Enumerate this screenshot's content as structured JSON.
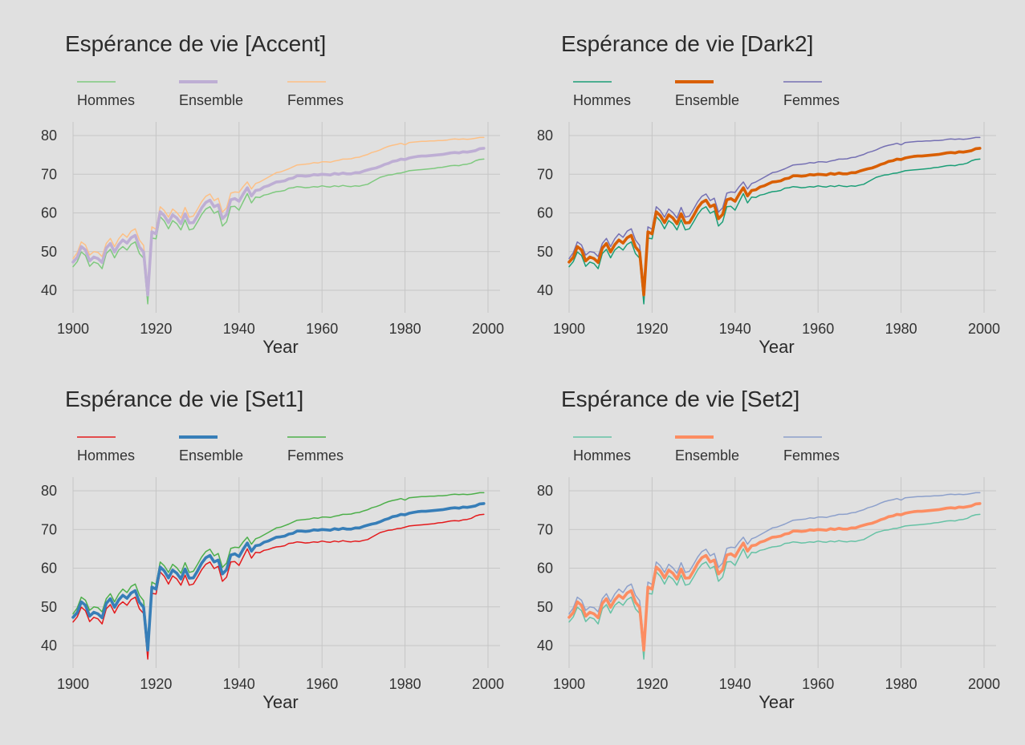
{
  "chart_data": [
    {
      "type": "line",
      "title": "Espérance de vie [Accent]",
      "xlabel": "Year",
      "ylabel": "",
      "xlim": [
        1900,
        2000
      ],
      "ylim": [
        35,
        83
      ],
      "x_ticks": [
        "1900",
        "1920",
        "1940",
        "1960",
        "1980",
        "2000"
      ],
      "y_ticks": [
        "40",
        "50",
        "60",
        "70",
        "80"
      ],
      "legend_position": "top",
      "grid": true,
      "series": [
        {
          "name": "Hommes",
          "color": "#7fc97f",
          "bold": false
        },
        {
          "name": "Ensemble",
          "color": "#beaed4",
          "bold": true
        },
        {
          "name": "Femmes",
          "color": "#fdc086",
          "bold": false
        }
      ]
    },
    {
      "type": "line",
      "title": "Espérance de vie [Dark2]",
      "xlabel": "Year",
      "ylabel": "",
      "xlim": [
        1900,
        2000
      ],
      "ylim": [
        35,
        83
      ],
      "x_ticks": [
        "1900",
        "1920",
        "1940",
        "1960",
        "1980",
        "2000"
      ],
      "y_ticks": [
        "40",
        "50",
        "60",
        "70",
        "80"
      ],
      "legend_position": "top",
      "grid": true,
      "series": [
        {
          "name": "Hommes",
          "color": "#1b9e77",
          "bold": false
        },
        {
          "name": "Ensemble",
          "color": "#d95f02",
          "bold": true
        },
        {
          "name": "Femmes",
          "color": "#7570b3",
          "bold": false
        }
      ]
    },
    {
      "type": "line",
      "title": "Espérance de vie [Set1]",
      "xlabel": "Year",
      "ylabel": "",
      "xlim": [
        1900,
        2000
      ],
      "ylim": [
        35,
        83
      ],
      "x_ticks": [
        "1900",
        "1920",
        "1940",
        "1960",
        "1980",
        "2000"
      ],
      "y_ticks": [
        "40",
        "50",
        "60",
        "70",
        "80"
      ],
      "legend_position": "top",
      "grid": true,
      "series": [
        {
          "name": "Hommes",
          "color": "#e41a1c",
          "bold": false
        },
        {
          "name": "Ensemble",
          "color": "#377eb8",
          "bold": true
        },
        {
          "name": "Femmes",
          "color": "#4daf4a",
          "bold": false
        }
      ]
    },
    {
      "type": "line",
      "title": "Espérance de vie [Set2]",
      "xlabel": "Year",
      "ylabel": "",
      "xlim": [
        1900,
        2000
      ],
      "ylim": [
        35,
        83
      ],
      "x_ticks": [
        "1900",
        "1920",
        "1940",
        "1960",
        "1980",
        "2000"
      ],
      "y_ticks": [
        "40",
        "50",
        "60",
        "70",
        "80"
      ],
      "legend_position": "top",
      "grid": true,
      "series": [
        {
          "name": "Hommes",
          "color": "#66c2a5",
          "bold": false
        },
        {
          "name": "Ensemble",
          "color": "#fc8d62",
          "bold": true
        },
        {
          "name": "Femmes",
          "color": "#8da0cb",
          "bold": false
        }
      ]
    }
  ],
  "years": [
    1900,
    1901,
    1902,
    1903,
    1904,
    1905,
    1906,
    1907,
    1908,
    1909,
    1910,
    1911,
    1912,
    1913,
    1914,
    1915,
    1916,
    1917,
    1918,
    1919,
    1920,
    1921,
    1922,
    1923,
    1924,
    1925,
    1926,
    1927,
    1928,
    1929,
    1930,
    1931,
    1932,
    1933,
    1934,
    1935,
    1936,
    1937,
    1938,
    1939,
    1940,
    1941,
    1942,
    1943,
    1944,
    1945,
    1946,
    1947,
    1948,
    1949,
    1950,
    1951,
    1952,
    1953,
    1954,
    1955,
    1956,
    1957,
    1958,
    1959,
    1960,
    1961,
    1962,
    1963,
    1964,
    1965,
    1966,
    1967,
    1968,
    1969,
    1970,
    1971,
    1972,
    1973,
    1974,
    1975,
    1976,
    1977,
    1978,
    1979,
    1980,
    1981,
    1982,
    1983,
    1984,
    1985,
    1986,
    1987,
    1988,
    1989,
    1990,
    1991,
    1992,
    1993,
    1994,
    1995,
    1996,
    1997,
    1998,
    1999
  ],
  "values": {
    "Hommes": [
      46.1,
      47.4,
      49.9,
      49.0,
      46.2,
      47.3,
      46.9,
      45.6,
      49.5,
      50.6,
      48.4,
      50.4,
      51.3,
      50.4,
      51.9,
      52.5,
      49.5,
      48.3,
      36.5,
      53.5,
      53.3,
      59.0,
      57.9,
      55.9,
      58.0,
      57.2,
      55.6,
      58.2,
      55.6,
      55.9,
      57.7,
      59.6,
      61.0,
      61.6,
      59.9,
      60.5,
      56.6,
      57.7,
      61.6,
      61.7,
      60.7,
      62.9,
      65.0,
      62.6,
      64.1,
      64.0,
      64.6,
      64.8,
      65.2,
      65.5,
      65.6,
      65.8,
      66.4,
      66.5,
      66.8,
      66.7,
      66.5,
      66.6,
      66.8,
      66.7,
      67.0,
      66.8,
      66.7,
      67.0,
      66.8,
      67.1,
      66.9,
      66.8,
      67.0,
      66.9,
      67.2,
      67.4,
      68.0,
      68.6,
      69.2,
      69.5,
      69.8,
      69.9,
      70.2,
      70.3,
      70.6,
      70.9,
      71.0,
      71.1,
      71.2,
      71.3,
      71.4,
      71.5,
      71.7,
      71.8,
      72.0,
      72.2,
      72.3,
      72.2,
      72.5,
      72.6,
      72.9,
      73.5,
      73.8,
      73.9
    ],
    "Ensemble": [
      47.3,
      48.5,
      51.3,
      50.4,
      47.6,
      48.6,
      48.2,
      47.2,
      50.9,
      52.1,
      49.9,
      51.8,
      53.0,
      52.2,
      53.6,
      54.2,
      51.2,
      49.9,
      38.8,
      55.1,
      54.6,
      60.3,
      59.3,
      57.5,
      59.5,
      58.7,
      57.2,
      59.8,
      57.4,
      57.5,
      59.3,
      61.3,
      62.7,
      63.3,
      61.6,
      62.1,
      58.5,
      59.6,
      63.4,
      63.7,
      63.0,
      64.9,
      66.5,
      64.4,
      65.8,
      66.0,
      66.7,
      67.0,
      67.5,
      68.0,
      68.1,
      68.3,
      68.8,
      69.0,
      69.6,
      69.6,
      69.5,
      69.6,
      69.9,
      69.8,
      70.0,
      69.9,
      69.8,
      70.2,
      70.0,
      70.3,
      70.1,
      70.1,
      70.4,
      70.4,
      70.8,
      71.1,
      71.4,
      71.6,
      72.0,
      72.5,
      72.8,
      73.3,
      73.5,
      73.9,
      73.8,
      74.2,
      74.4,
      74.6,
      74.7,
      74.7,
      74.8,
      74.9,
      75.0,
      75.1,
      75.3,
      75.5,
      75.6,
      75.5,
      75.8,
      75.7,
      75.9,
      76.1,
      76.6,
      76.7
    ],
    "Femmes": [
      48.2,
      49.7,
      52.5,
      51.7,
      49.1,
      50.0,
      49.8,
      48.7,
      52.1,
      53.4,
      51.3,
      53.3,
      54.6,
      53.7,
      55.3,
      55.9,
      53.0,
      51.6,
      41.0,
      56.4,
      55.8,
      61.6,
      60.6,
      58.9,
      61.0,
      60.1,
      58.7,
      61.4,
      58.9,
      59.2,
      61.0,
      62.9,
      64.3,
      64.9,
      63.2,
      63.8,
      60.2,
      61.3,
      65.1,
      65.4,
      65.3,
      66.8,
      68.0,
      66.2,
      67.6,
      68.0,
      68.6,
      69.2,
      69.8,
      70.4,
      70.6,
      71.0,
      71.4,
      71.9,
      72.4,
      72.5,
      72.6,
      72.7,
      73.0,
      72.9,
      73.2,
      73.2,
      73.1,
      73.4,
      73.6,
      73.9,
      73.9,
      74.0,
      74.3,
      74.4,
      74.8,
      75.1,
      75.6,
      75.9,
      76.3,
      76.8,
      77.2,
      77.5,
      77.7,
      78.0,
      77.6,
      78.2,
      78.3,
      78.4,
      78.5,
      78.5,
      78.6,
      78.6,
      78.7,
      78.7,
      78.8,
      79.0,
      79.1,
      79.0,
      79.1,
      79.0,
      79.1,
      79.3,
      79.5,
      79.5
    ]
  }
}
